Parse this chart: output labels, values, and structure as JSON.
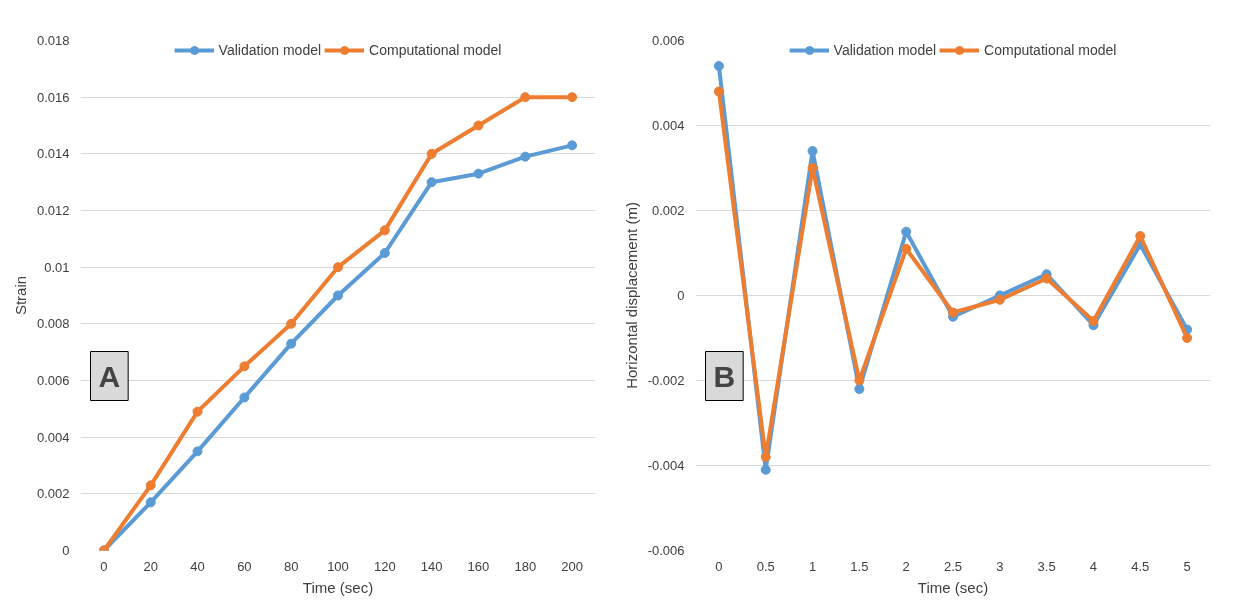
{
  "chart_data": [
    {
      "type": "line",
      "ylabel": "Strain",
      "xlabel": "Time (sec)",
      "categories": [
        "0",
        "20",
        "40",
        "60",
        "80",
        "100",
        "120",
        "140",
        "160",
        "180",
        "200"
      ],
      "series": [
        {
          "name": "Validation model",
          "color": "#5b9bd5",
          "values": [
            0,
            0.0017,
            0.0035,
            0.0054,
            0.0073,
            0.009,
            0.0105,
            0.013,
            0.0133,
            0.0139,
            0.0143
          ]
        },
        {
          "name": "Computational model",
          "color": "#ed7d31",
          "values": [
            0,
            0.0023,
            0.0049,
            0.0065,
            0.008,
            0.01,
            0.0113,
            0.014,
            0.015,
            0.016,
            0.016
          ]
        }
      ],
      "ylim": [
        0,
        0.018
      ],
      "yticks": [
        0,
        0.002,
        0.004,
        0.006,
        0.008,
        0.01,
        0.012,
        0.014,
        0.016,
        0.018
      ],
      "grid": "y",
      "legend": "top",
      "marker": "circle",
      "line_style": "solid",
      "annotations": [
        "A"
      ]
    },
    {
      "type": "line",
      "ylabel": "Horizontal displacement (m)",
      "xlabel": "Time (sec)",
      "categories": [
        "0",
        "0.5",
        "1",
        "1.5",
        "2",
        "2.5",
        "3",
        "3.5",
        "4",
        "4.5",
        "5"
      ],
      "series": [
        {
          "name": "Validation model",
          "color": "#5b9bd5",
          "values": [
            0.0054,
            -0.0041,
            0.0034,
            -0.0022,
            0.0015,
            -0.0005,
            0.0,
            0.0005,
            -0.0007,
            0.0012,
            -0.0008
          ]
        },
        {
          "name": "Computational model",
          "color": "#ed7d31",
          "values": [
            0.0048,
            -0.0038,
            0.003,
            -0.002,
            0.0011,
            -0.0004,
            -0.0001,
            0.0004,
            -0.0006,
            0.0014,
            -0.001
          ]
        }
      ],
      "ylim": [
        -0.006,
        0.006
      ],
      "yticks": [
        -0.006,
        -0.004,
        -0.002,
        0,
        0.002,
        0.004,
        0.006
      ],
      "grid": "y",
      "legend": "top",
      "marker": "circle",
      "line_style": "solid",
      "annotations": [
        "B"
      ]
    }
  ]
}
